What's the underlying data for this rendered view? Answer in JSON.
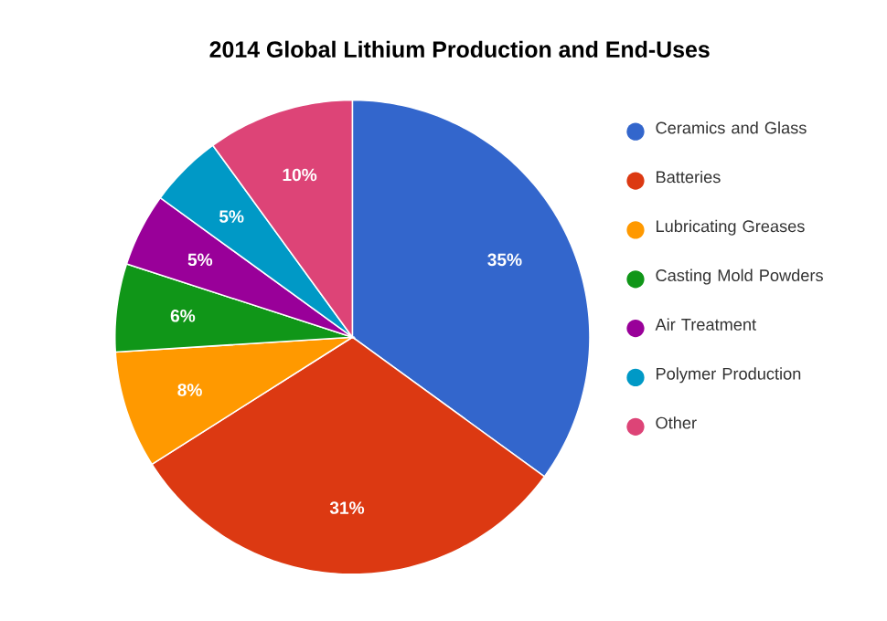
{
  "chart_data": {
    "type": "pie",
    "title": "2014 Global Lithium Production and End-Uses",
    "categories": [
      "Ceramics and Glass",
      "Batteries",
      "Lubricating Greases",
      "Casting Mold Powders",
      "Air Treatment",
      "Polymer Production",
      "Other"
    ],
    "values": [
      35,
      31,
      8,
      6,
      5,
      5,
      10
    ],
    "value_labels": [
      "35%",
      "31%",
      "8%",
      "6%",
      "5%",
      "5%",
      "10%"
    ],
    "colors": [
      "#3366cc",
      "#dc3912",
      "#ff9900",
      "#109618",
      "#990099",
      "#0099c6",
      "#dd4477"
    ],
    "legend": "right"
  }
}
